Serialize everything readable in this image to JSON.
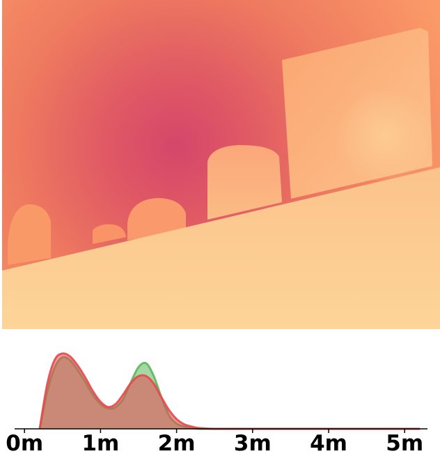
{
  "chart_data": {
    "type": "area",
    "title": "",
    "xlabel": "",
    "ylabel": "",
    "xlim": [
      -0.13,
      5.3
    ],
    "ylim": [
      0,
      1
    ],
    "grid": false,
    "legend": "none",
    "x_ticks": [
      0,
      1,
      2,
      3,
      4,
      5
    ],
    "x_tick_labels": [
      "0m",
      "1m",
      "2m",
      "3m",
      "4m",
      "5m"
    ],
    "series": [
      {
        "color": "#5cb85c",
        "x": [
          0.2,
          0.3,
          0.4,
          0.5,
          0.6,
          0.7,
          0.8,
          0.9,
          1.0,
          1.1,
          1.2,
          1.3,
          1.4,
          1.5,
          1.6,
          1.7,
          1.8,
          1.9,
          2.0,
          2.1,
          2.2,
          2.3,
          2.5,
          3.0,
          5.2
        ],
        "values": [
          0.0,
          0.5,
          0.82,
          0.95,
          0.91,
          0.78,
          0.62,
          0.45,
          0.33,
          0.27,
          0.29,
          0.4,
          0.62,
          0.82,
          0.87,
          0.7,
          0.42,
          0.18,
          0.07,
          0.03,
          0.01,
          0.0,
          0.0,
          0.0,
          0.0
        ]
      },
      {
        "color": "#e8474e",
        "x": [
          0.2,
          0.3,
          0.4,
          0.5,
          0.6,
          0.7,
          0.8,
          0.9,
          1.0,
          1.1,
          1.2,
          1.3,
          1.4,
          1.5,
          1.6,
          1.7,
          1.8,
          1.9,
          2.0,
          2.1,
          2.2,
          2.3,
          2.5,
          3.0,
          5.2
        ],
        "values": [
          0.0,
          0.6,
          0.92,
          1.0,
          0.96,
          0.84,
          0.68,
          0.5,
          0.36,
          0.29,
          0.33,
          0.46,
          0.61,
          0.7,
          0.7,
          0.6,
          0.42,
          0.25,
          0.13,
          0.06,
          0.03,
          0.01,
          0.0,
          0.0,
          0.0
        ]
      }
    ]
  }
}
